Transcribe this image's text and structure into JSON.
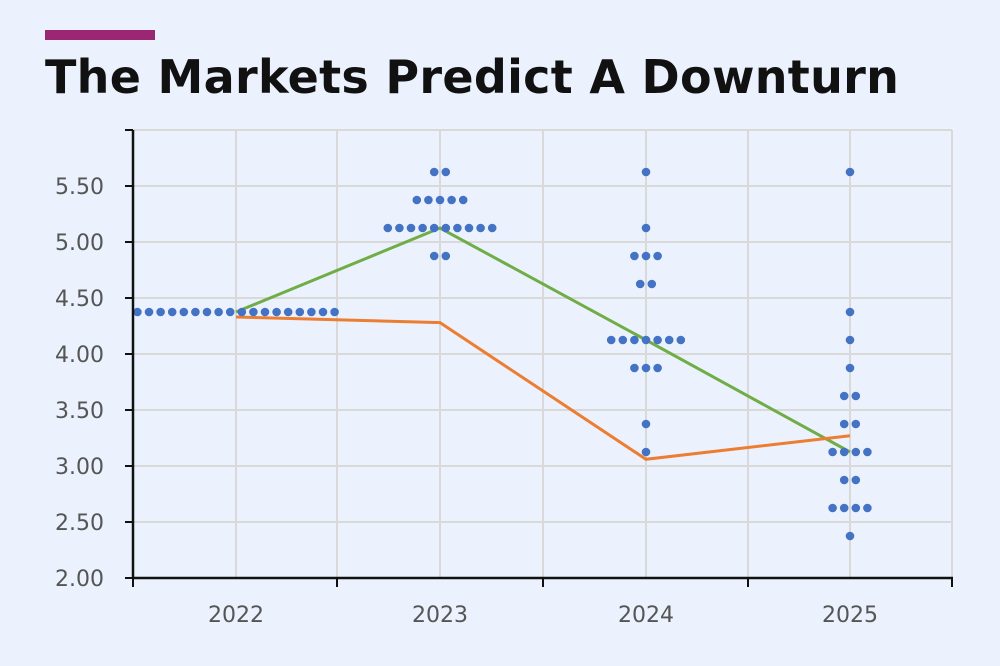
{
  "title": "The Markets Predict A Downturn",
  "colors": {
    "background": "#ebf2fd",
    "accent_bar": "#9b2671",
    "dots": "#4472c4",
    "green_line": "#70ad47",
    "orange_line": "#ed7d31",
    "grid": "#d9d9d9",
    "axis": "#111111"
  },
  "chart_data": {
    "type": "scatter",
    "title": "The Markets Predict A Downturn",
    "xlabel": "",
    "ylabel": "",
    "categories": [
      "2022",
      "2023",
      "2024",
      "2025"
    ],
    "y_ticks": [
      "2.00",
      "2.50",
      "3.00",
      "3.50",
      "4.00",
      "4.50",
      "5.00",
      "5.50"
    ],
    "ylim": [
      2.0,
      6.0
    ],
    "grid": true,
    "dot_plot": [
      {
        "year": "2022",
        "rows": [
          {
            "y": 4.375,
            "count": 18
          }
        ]
      },
      {
        "year": "2023",
        "rows": [
          {
            "y": 5.625,
            "count": 2
          },
          {
            "y": 5.375,
            "count": 5
          },
          {
            "y": 5.125,
            "count": 10
          },
          {
            "y": 4.875,
            "count": 2
          }
        ]
      },
      {
        "year": "2024",
        "rows": [
          {
            "y": 5.625,
            "count": 1
          },
          {
            "y": 5.125,
            "count": 1
          },
          {
            "y": 4.875,
            "count": 3
          },
          {
            "y": 4.625,
            "count": 2
          },
          {
            "y": 4.125,
            "count": 7
          },
          {
            "y": 3.875,
            "count": 3
          },
          {
            "y": 3.375,
            "count": 1
          },
          {
            "y": 3.125,
            "count": 1
          }
        ]
      },
      {
        "year": "2025",
        "rows": [
          {
            "y": 5.625,
            "count": 1
          },
          {
            "y": 4.375,
            "count": 1
          },
          {
            "y": 4.125,
            "count": 1
          },
          {
            "y": 3.875,
            "count": 1
          },
          {
            "y": 3.625,
            "count": 2
          },
          {
            "y": 3.375,
            "count": 2
          },
          {
            "y": 3.125,
            "count": 4
          },
          {
            "y": 2.875,
            "count": 2
          },
          {
            "y": 2.625,
            "count": 4
          },
          {
            "y": 2.375,
            "count": 1
          }
        ]
      }
    ],
    "series": [
      {
        "color": "green",
        "x": [
          "2022",
          "2023",
          "2024",
          "2025"
        ],
        "values": [
          4.375,
          5.125,
          4.125,
          3.125
        ]
      },
      {
        "color": "orange",
        "x": [
          "2022",
          "2023",
          "2024",
          "2025"
        ],
        "values": [
          4.33,
          4.28,
          3.06,
          3.27
        ]
      }
    ]
  }
}
